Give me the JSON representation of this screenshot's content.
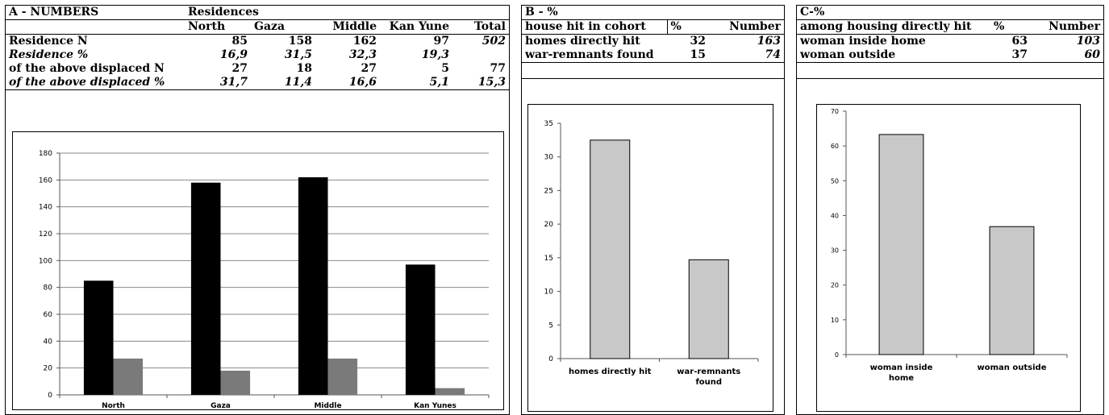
{
  "panel_a": {
    "title": "A - NUMBERS",
    "group_header": "Residences",
    "col_headers": [
      "North",
      "Gaza",
      "Middle",
      "Kan Yune",
      "Total"
    ],
    "rows": [
      {
        "label": "Residence N",
        "values": [
          "85",
          "158",
          "162",
          "97",
          "502"
        ]
      },
      {
        "label": "Residence %",
        "values": [
          "16,9",
          "31,5",
          "32,3",
          "19,3",
          ""
        ]
      },
      {
        "label": "of the above displaced N",
        "values": [
          "27",
          "18",
          "27",
          "5",
          "77"
        ]
      },
      {
        "label": "of the above displaced %",
        "values": [
          "31,7",
          "11,4",
          "16,6",
          "5,1",
          "15,3"
        ]
      }
    ]
  },
  "panel_b": {
    "title": "B - %",
    "col_headers": [
      "house hit in cohort",
      "%",
      "Number"
    ],
    "rows": [
      {
        "label": "homes directly hit",
        "pct": "32",
        "number": "163"
      },
      {
        "label": "war-remnants found",
        "pct": "15",
        "number": "74"
      }
    ]
  },
  "panel_c": {
    "title": "C-%",
    "col_headers": [
      "among housing directly hit",
      "%",
      "Number"
    ],
    "rows": [
      {
        "label": "woman inside home",
        "pct": "63",
        "number": "103"
      },
      {
        "label": "woman outside",
        "pct": "37",
        "number": "60"
      }
    ]
  },
  "chart_data": [
    {
      "type": "bar",
      "categories": [
        "North",
        "Gaza",
        "Middle",
        "Kan Yunes"
      ],
      "series": [
        {
          "values": [
            85,
            158,
            162,
            97
          ],
          "color": "#000000"
        },
        {
          "values": [
            27,
            18,
            27,
            5
          ],
          "color": "#7a7a7a"
        }
      ],
      "ylim": [
        0,
        180
      ],
      "yticks": [
        0,
        20,
        40,
        60,
        80,
        100,
        120,
        140,
        160,
        180
      ],
      "grid": true
    },
    {
      "type": "bar",
      "categories": [
        "homes directly hit",
        "war-remnants found"
      ],
      "series": [
        {
          "values": [
            32.5,
            14.7
          ],
          "color": "#c8c8c8"
        }
      ],
      "ylim": [
        0,
        35
      ],
      "yticks": [
        0,
        5,
        10,
        15,
        20,
        25,
        30,
        35
      ],
      "grid": false
    },
    {
      "type": "bar",
      "categories": [
        "woman inside home",
        "woman outside"
      ],
      "series": [
        {
          "values": [
            63.3,
            36.8
          ],
          "color": "#c8c8c8"
        }
      ],
      "ylim": [
        0,
        70
      ],
      "yticks": [
        0,
        10,
        20,
        30,
        40,
        50,
        60,
        70
      ],
      "grid": false
    }
  ]
}
